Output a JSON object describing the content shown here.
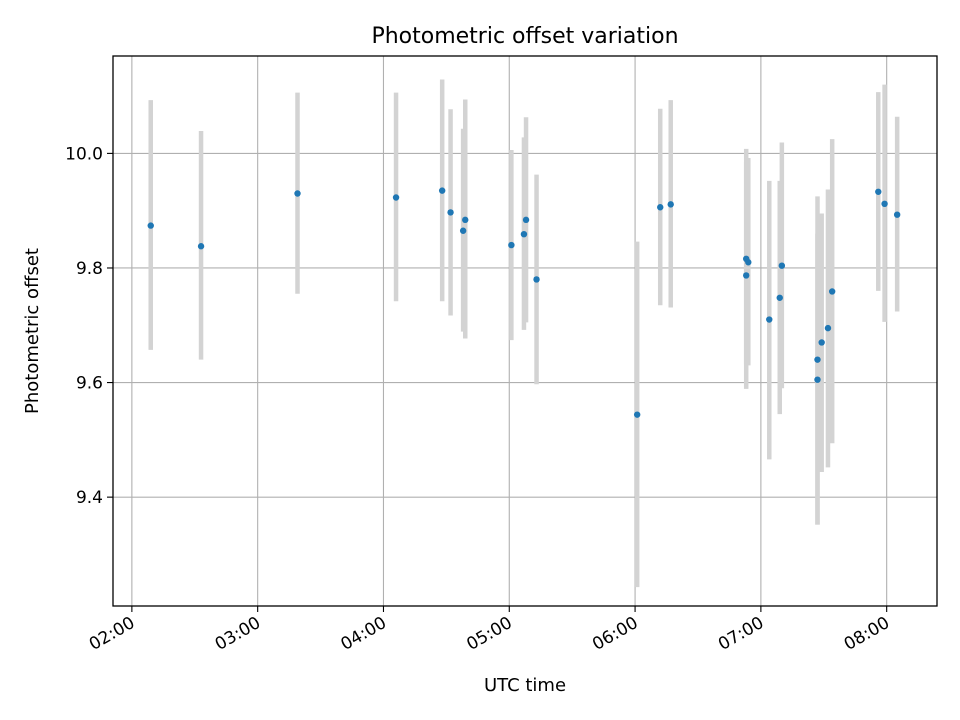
{
  "chart_data": {
    "type": "scatter",
    "title": "Photometric offset variation",
    "xlabel": "UTC time",
    "ylabel": "Photometric offset",
    "x_ticks": [
      "02:00",
      "03:00",
      "04:00",
      "05:00",
      "06:00",
      "07:00",
      "08:00"
    ],
    "y_ticks": [
      "9.4",
      "9.6",
      "9.8",
      "10.0"
    ],
    "xlim": [
      "01:51",
      "08:24"
    ],
    "ylim": [
      9.21,
      10.17
    ],
    "grid": true,
    "point_color": "#1f77b4",
    "errorbar_color": "#d3d3d3",
    "series": [
      {
        "points": [
          {
            "t": "02:09",
            "y": 9.874,
            "lo": 9.657,
            "hi": 10.093
          },
          {
            "t": "02:33",
            "y": 9.838,
            "lo": 9.64,
            "hi": 10.039
          },
          {
            "t": "03:19",
            "y": 9.93,
            "lo": 9.755,
            "hi": 10.106
          },
          {
            "t": "04:06",
            "y": 9.923,
            "lo": 9.742,
            "hi": 10.106
          },
          {
            "t": "04:28",
            "y": 9.935,
            "lo": 9.742,
            "hi": 10.129
          },
          {
            "t": "04:32",
            "y": 9.897,
            "lo": 9.717,
            "hi": 10.077
          },
          {
            "t": "04:38",
            "y": 9.865,
            "lo": 9.689,
            "hi": 10.043
          },
          {
            "t": "04:39",
            "y": 9.884,
            "lo": 9.677,
            "hi": 10.094
          },
          {
            "t": "05:01",
            "y": 9.84,
            "lo": 9.674,
            "hi": 10.006
          },
          {
            "t": "05:07",
            "y": 9.859,
            "lo": 9.692,
            "hi": 10.028
          },
          {
            "t": "05:08",
            "y": 9.884,
            "lo": 9.705,
            "hi": 10.063
          },
          {
            "t": "05:13",
            "y": 9.78,
            "lo": 9.597,
            "hi": 9.963
          },
          {
            "t": "06:01",
            "y": 9.544,
            "lo": 9.243,
            "hi": 9.846
          },
          {
            "t": "06:12",
            "y": 9.906,
            "lo": 9.735,
            "hi": 10.078
          },
          {
            "t": "06:17",
            "y": 9.911,
            "lo": 9.731,
            "hi": 10.093
          },
          {
            "t": "06:53",
            "y": 9.787,
            "lo": 9.589,
            "hi": 9.985
          },
          {
            "t": "06:53",
            "y": 9.816,
            "lo": 9.631,
            "hi": 10.008
          },
          {
            "t": "06:54",
            "y": 9.81,
            "lo": 9.63,
            "hi": 9.992
          },
          {
            "t": "07:04",
            "y": 9.71,
            "lo": 9.466,
            "hi": 9.952
          },
          {
            "t": "07:09",
            "y": 9.748,
            "lo": 9.545,
            "hi": 9.952
          },
          {
            "t": "07:10",
            "y": 9.804,
            "lo": 9.59,
            "hi": 10.019
          },
          {
            "t": "07:27",
            "y": 9.64,
            "lo": 9.352,
            "hi": 9.925
          },
          {
            "t": "07:27",
            "y": 9.605,
            "lo": 9.352,
            "hi": 9.86
          },
          {
            "t": "07:29",
            "y": 9.67,
            "lo": 9.444,
            "hi": 9.895
          },
          {
            "t": "07:32",
            "y": 9.695,
            "lo": 9.452,
            "hi": 9.937
          },
          {
            "t": "07:34",
            "y": 9.759,
            "lo": 9.494,
            "hi": 10.025
          },
          {
            "t": "07:56",
            "y": 9.933,
            "lo": 9.76,
            "hi": 10.107
          },
          {
            "t": "07:59",
            "y": 9.912,
            "lo": 9.706,
            "hi": 10.12
          },
          {
            "t": "08:05",
            "y": 9.893,
            "lo": 9.724,
            "hi": 10.064
          }
        ]
      }
    ]
  }
}
